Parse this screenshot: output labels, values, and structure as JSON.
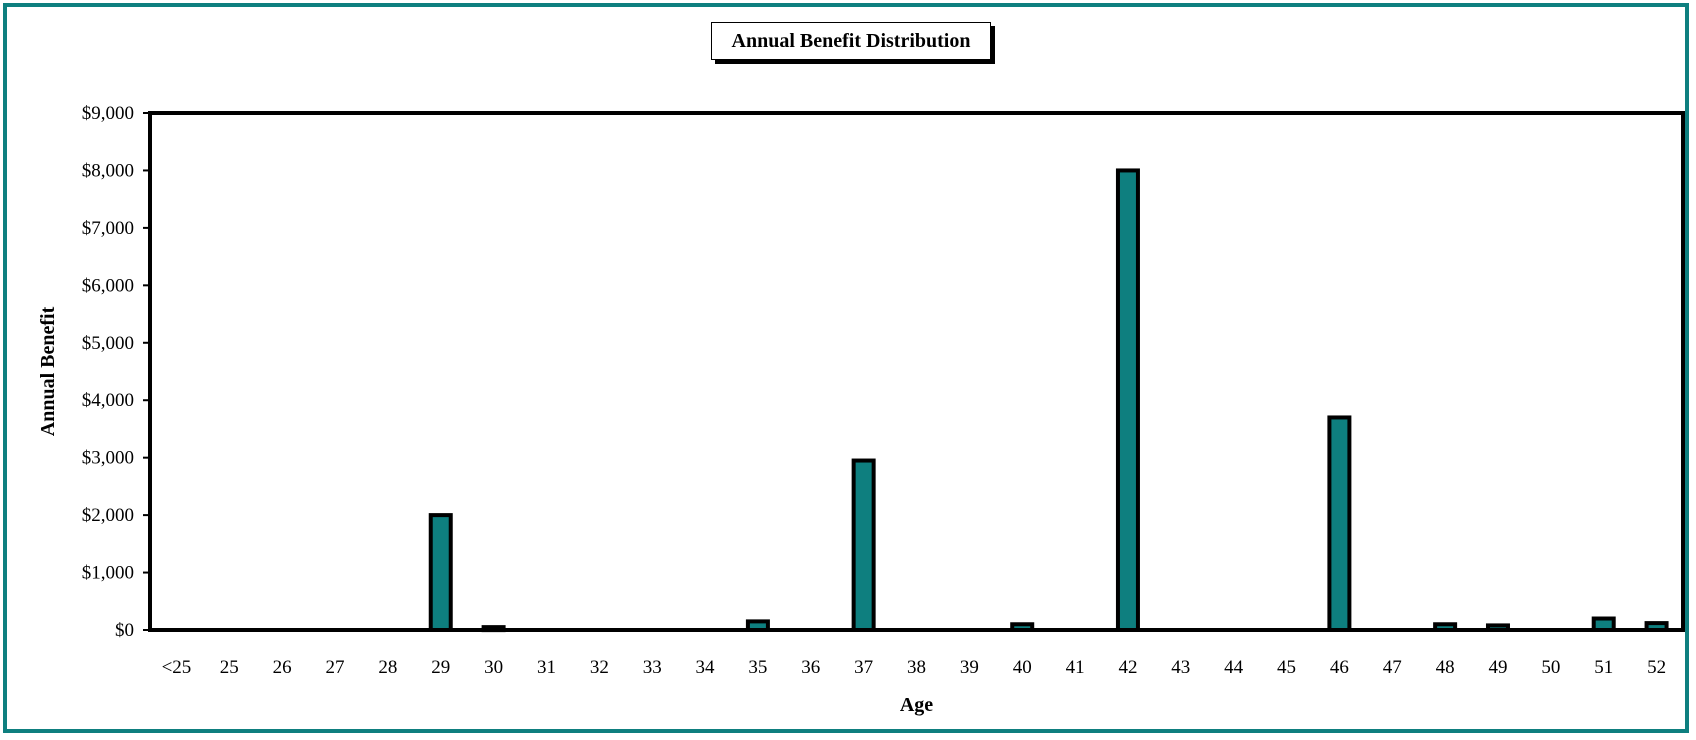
{
  "chart_data": {
    "type": "bar",
    "title": "Annual Benefit Distribution",
    "xlabel": "Age",
    "ylabel": "Annual Benefit",
    "ylim": [
      0,
      9000
    ],
    "yticks": [
      "$0",
      "$1,000",
      "$2,000",
      "$3,000",
      "$4,000",
      "$5,000",
      "$6,000",
      "$7,000",
      "$8,000",
      "$9,000"
    ],
    "categories": [
      "<25",
      "25",
      "26",
      "27",
      "28",
      "29",
      "30",
      "31",
      "32",
      "33",
      "34",
      "35",
      "36",
      "37",
      "38",
      "39",
      "40",
      "41",
      "42",
      "43",
      "44",
      "45",
      "46",
      "47",
      "48",
      "49",
      "50",
      "51",
      "52"
    ],
    "values": [
      0,
      0,
      0,
      0,
      0,
      2000,
      50,
      0,
      0,
      0,
      0,
      150,
      0,
      2950,
      0,
      0,
      100,
      0,
      8000,
      0,
      0,
      0,
      3700,
      0,
      100,
      80,
      0,
      200,
      120
    ],
    "grid": false,
    "colors": {
      "bar": "#0e7f7f",
      "outline": "#000000",
      "frame": "#0e7f7f"
    }
  }
}
